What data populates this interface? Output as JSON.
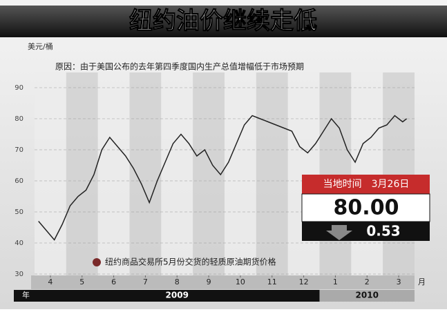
{
  "chart_data": {
    "type": "line",
    "title": "纽约油价继续走低",
    "y_axis_label": "美元/桶",
    "subtitle": "原因：由于美国公布的去年第四季度国内生产总值增幅低于市场预期",
    "x_unit": "月",
    "year_unit": "年",
    "years": [
      "2009",
      "2010"
    ],
    "xlim": [
      0,
      12
    ],
    "xticks": [
      {
        "value": 0.5,
        "label": "4"
      },
      {
        "value": 1.5,
        "label": "5"
      },
      {
        "value": 2.5,
        "label": "6"
      },
      {
        "value": 3.5,
        "label": "7"
      },
      {
        "value": 4.5,
        "label": "8"
      },
      {
        "value": 5.5,
        "label": "9"
      },
      {
        "value": 6.5,
        "label": "10"
      },
      {
        "value": 7.5,
        "label": "11"
      },
      {
        "value": 8.5,
        "label": "12"
      },
      {
        "value": 9.5,
        "label": "1"
      },
      {
        "value": 10.5,
        "label": "2"
      },
      {
        "value": 11.5,
        "label": "3"
      }
    ],
    "ylim": [
      30,
      96
    ],
    "yticks": [
      30,
      40,
      50,
      60,
      70,
      80,
      90
    ],
    "grid": true,
    "series": [
      {
        "name": "纽约商品交易所5月份交货的轻质原油期货价格",
        "color": "#222222",
        "x": [
          0.125,
          0.375,
          0.625,
          0.875,
          1.125,
          1.375,
          1.625,
          1.875,
          2.125,
          2.375,
          2.625,
          2.875,
          3.125,
          3.375,
          3.625,
          3.875,
          4.125,
          4.375,
          4.625,
          4.875,
          5.125,
          5.375,
          5.625,
          5.875,
          6.125,
          6.375,
          6.625,
          6.875,
          7.125,
          7.375,
          7.625,
          7.875,
          8.125,
          8.375,
          8.625,
          8.875,
          9.125,
          9.375,
          9.625,
          9.875,
          10.125,
          10.375,
          10.625,
          10.875,
          11.125,
          11.375,
          11.625,
          11.75
        ],
        "values": [
          47,
          44,
          41,
          46,
          52,
          55,
          57,
          62,
          70,
          74,
          71,
          68,
          64,
          59,
          53,
          60,
          66,
          72,
          75,
          72,
          68,
          70,
          65,
          62,
          66,
          72,
          78,
          81,
          80,
          79,
          78,
          77,
          76,
          71,
          69,
          72,
          76,
          80,
          77,
          70,
          66,
          72,
          74,
          77,
          78,
          81,
          79,
          80
        ]
      }
    ],
    "callout": {
      "date_label": "当地时间　3月26日",
      "price": "80.00",
      "change": "0.53"
    }
  }
}
